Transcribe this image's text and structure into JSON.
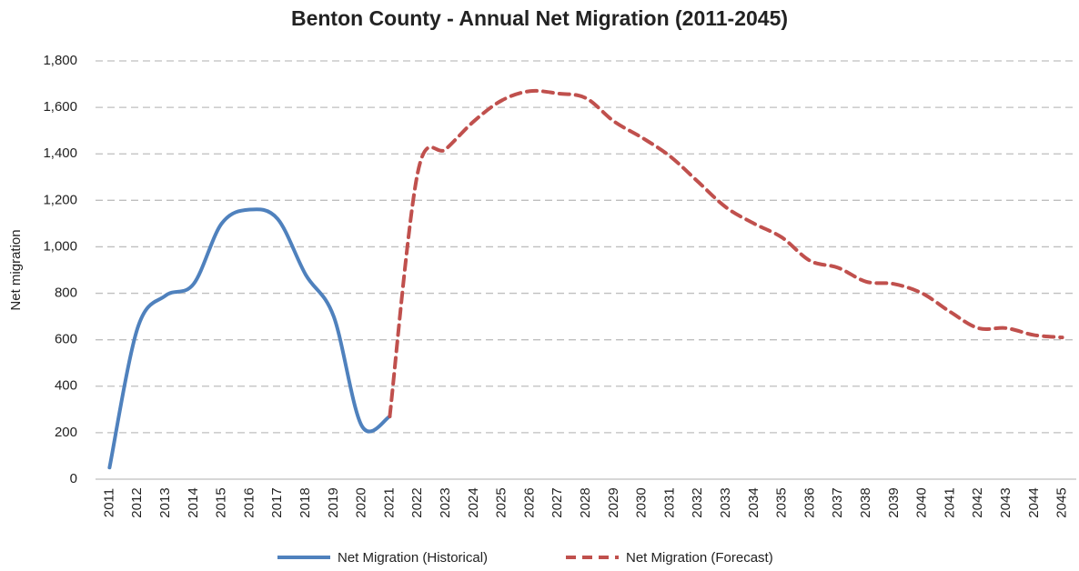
{
  "chart_data": {
    "type": "line",
    "title": "Benton County - Annual Net Migration (2011-2045)",
    "y_label": "Net migration",
    "categories": [
      "2011",
      "2012",
      "2013",
      "2014",
      "2015",
      "2016",
      "2017",
      "2018",
      "2019",
      "2020",
      "2021",
      "2022",
      "2023",
      "2024",
      "2025",
      "2026",
      "2027",
      "2028",
      "2029",
      "2030",
      "2031",
      "2032",
      "2033",
      "2034",
      "2035",
      "2036",
      "2037",
      "2038",
      "2039",
      "2040",
      "2041",
      "2042",
      "2043",
      "2044",
      "2045"
    ],
    "series": [
      {
        "name": "Net Migration (Historical)",
        "color": "#4f81bd",
        "dashed": false,
        "values": [
          50,
          650,
          790,
          840,
          1100,
          1160,
          1120,
          880,
          700,
          230,
          270,
          null,
          null,
          null,
          null,
          null,
          null,
          null,
          null,
          null,
          null,
          null,
          null,
          null,
          null,
          null,
          null,
          null,
          null,
          null,
          null,
          null,
          null,
          null,
          null
        ]
      },
      {
        "name": "Net Migration (Forecast)",
        "color": "#c0504d",
        "dashed": true,
        "values": [
          null,
          null,
          null,
          null,
          null,
          null,
          null,
          null,
          null,
          null,
          270,
          1320,
          1420,
          1540,
          1630,
          1670,
          1660,
          1640,
          1540,
          1470,
          1390,
          1280,
          1170,
          1100,
          1040,
          940,
          910,
          850,
          840,
          800,
          720,
          650,
          650,
          620,
          610
        ]
      }
    ],
    "ylim": [
      0,
      1800
    ],
    "yticks": [
      0,
      200,
      400,
      600,
      800,
      {
        "value": 1000,
        "label": "1,000"
      },
      {
        "value": 1200,
        "label": "1,200"
      },
      {
        "value": 1400,
        "label": "1,400"
      },
      {
        "value": 1600,
        "label": "1,600"
      },
      {
        "value": 1800,
        "label": "1,800"
      }
    ],
    "grid": true,
    "legend": "bottom"
  }
}
